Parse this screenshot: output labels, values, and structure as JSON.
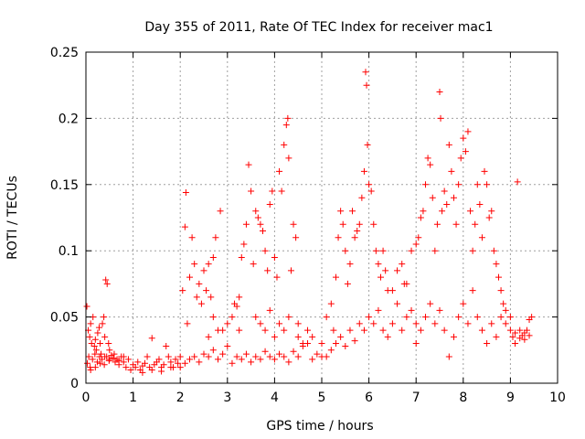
{
  "chart_data": {
    "type": "scatter",
    "title": "Day 355 of 2011, Rate Of TEC Index for receiver mac1",
    "xlabel": "GPS time / hours",
    "ylabel": "ROTI / TECUs",
    "xlim": [
      0,
      10
    ],
    "ylim": [
      0,
      0.25
    ],
    "x_ticks": [
      0,
      1,
      2,
      3,
      4,
      5,
      6,
      7,
      8,
      9,
      10
    ],
    "x_tick_labels": [
      "0",
      "1",
      "2",
      "3",
      "4",
      "5",
      "6",
      "7",
      "8",
      "9",
      "10"
    ],
    "y_ticks": [
      0,
      0.05,
      0.1,
      0.15,
      0.2,
      0.25
    ],
    "y_tick_labels": [
      "0",
      "0.05",
      "0.1",
      "0.15",
      "0.2",
      "0.25"
    ],
    "grid": true,
    "marker": "+",
    "color": "#ff0000",
    "series": [
      {
        "name": "ROTI",
        "points": [
          [
            0.02,
            0.058
          ],
          [
            0.05,
            0.04
          ],
          [
            0.08,
            0.035
          ],
          [
            0.1,
            0.045
          ],
          [
            0.12,
            0.03
          ],
          [
            0.15,
            0.05
          ],
          [
            0.18,
            0.028
          ],
          [
            0.2,
            0.033
          ],
          [
            0.22,
            0.025
          ],
          [
            0.25,
            0.038
          ],
          [
            0.28,
            0.042
          ],
          [
            0.3,
            0.03
          ],
          [
            0.32,
            0.022
          ],
          [
            0.35,
            0.045
          ],
          [
            0.38,
            0.05
          ],
          [
            0.4,
            0.035
          ],
          [
            0.42,
            0.078
          ],
          [
            0.45,
            0.075
          ],
          [
            0.48,
            0.03
          ],
          [
            0.5,
            0.025
          ],
          [
            0.03,
            0.015
          ],
          [
            0.06,
            0.02
          ],
          [
            0.09,
            0.012
          ],
          [
            0.14,
            0.018
          ],
          [
            0.19,
            0.022
          ],
          [
            0.24,
            0.016
          ],
          [
            0.29,
            0.02
          ],
          [
            0.34,
            0.018
          ],
          [
            0.39,
            0.014
          ],
          [
            0.44,
            0.02
          ],
          [
            0.49,
            0.017
          ],
          [
            0.54,
            0.021
          ],
          [
            0.58,
            0.019
          ],
          [
            0.62,
            0.016
          ],
          [
            0.66,
            0.018
          ],
          [
            0.7,
            0.014
          ],
          [
            0.75,
            0.02
          ],
          [
            0.8,
            0.016
          ],
          [
            0.85,
            0.012
          ],
          [
            0.9,
            0.018
          ],
          [
            0.95,
            0.01
          ],
          [
            1.0,
            0.014
          ],
          [
            1.05,
            0.012
          ],
          [
            1.1,
            0.016
          ],
          [
            1.15,
            0.01
          ],
          [
            1.2,
            0.013
          ],
          [
            1.25,
            0.015
          ],
          [
            1.3,
            0.02
          ],
          [
            1.35,
            0.012
          ],
          [
            1.4,
            0.034
          ],
          [
            1.45,
            0.014
          ],
          [
            1.5,
            0.016
          ],
          [
            1.55,
            0.018
          ],
          [
            1.6,
            0.012
          ],
          [
            1.65,
            0.014
          ],
          [
            1.7,
            0.028
          ],
          [
            1.75,
            0.02
          ],
          [
            1.8,
            0.016
          ],
          [
            1.85,
            0.012
          ],
          [
            1.9,
            0.018
          ],
          [
            1.95,
            0.015
          ],
          [
            2.0,
            0.02
          ],
          [
            2.05,
            0.07
          ],
          [
            2.1,
            0.118
          ],
          [
            2.12,
            0.144
          ],
          [
            2.15,
            0.045
          ],
          [
            2.2,
            0.08
          ],
          [
            2.25,
            0.11
          ],
          [
            2.3,
            0.09
          ],
          [
            2.35,
            0.065
          ],
          [
            2.4,
            0.075
          ],
          [
            2.45,
            0.06
          ],
          [
            2.5,
            0.085
          ],
          [
            2.55,
            0.07
          ],
          [
            2.6,
            0.09
          ],
          [
            2.65,
            0.065
          ],
          [
            2.7,
            0.095
          ],
          [
            2.75,
            0.11
          ],
          [
            2.8,
            0.04
          ],
          [
            2.85,
            0.13
          ],
          [
            2.0,
            0.012
          ],
          [
            2.1,
            0.015
          ],
          [
            2.2,
            0.018
          ],
          [
            2.3,
            0.02
          ],
          [
            2.4,
            0.016
          ],
          [
            2.5,
            0.022
          ],
          [
            2.6,
            0.02
          ],
          [
            2.7,
            0.025
          ],
          [
            2.8,
            0.018
          ],
          [
            2.9,
            0.022
          ],
          [
            3.0,
            0.028
          ],
          [
            3.1,
            0.05
          ],
          [
            3.15,
            0.06
          ],
          [
            3.2,
            0.058
          ],
          [
            3.25,
            0.04
          ],
          [
            3.3,
            0.095
          ],
          [
            3.35,
            0.105
          ],
          [
            3.4,
            0.12
          ],
          [
            3.45,
            0.165
          ],
          [
            3.5,
            0.145
          ],
          [
            3.55,
            0.09
          ],
          [
            3.6,
            0.13
          ],
          [
            3.65,
            0.125
          ],
          [
            3.7,
            0.12
          ],
          [
            3.75,
            0.115
          ],
          [
            3.8,
            0.1
          ],
          [
            3.85,
            0.085
          ],
          [
            3.9,
            0.135
          ],
          [
            3.95,
            0.145
          ],
          [
            4.0,
            0.095
          ],
          [
            4.05,
            0.08
          ],
          [
            4.1,
            0.16
          ],
          [
            4.15,
            0.145
          ],
          [
            4.2,
            0.18
          ],
          [
            4.25,
            0.195
          ],
          [
            4.28,
            0.2
          ],
          [
            4.3,
            0.17
          ],
          [
            4.35,
            0.085
          ],
          [
            4.4,
            0.12
          ],
          [
            4.45,
            0.11
          ],
          [
            3.1,
            0.015
          ],
          [
            3.2,
            0.02
          ],
          [
            3.3,
            0.018
          ],
          [
            3.4,
            0.022
          ],
          [
            3.5,
            0.016
          ],
          [
            3.6,
            0.02
          ],
          [
            3.7,
            0.018
          ],
          [
            3.8,
            0.024
          ],
          [
            3.9,
            0.02
          ],
          [
            4.0,
            0.018
          ],
          [
            4.1,
            0.022
          ],
          [
            4.2,
            0.02
          ],
          [
            4.3,
            0.016
          ],
          [
            4.4,
            0.024
          ],
          [
            4.5,
            0.02
          ],
          [
            4.6,
            0.028
          ],
          [
            4.7,
            0.03
          ],
          [
            4.8,
            0.018
          ],
          [
            4.9,
            0.022
          ],
          [
            5.0,
            0.02
          ],
          [
            3.6,
            0.05
          ],
          [
            3.7,
            0.045
          ],
          [
            3.8,
            0.04
          ],
          [
            3.9,
            0.055
          ],
          [
            4.0,
            0.035
          ],
          [
            4.1,
            0.045
          ],
          [
            4.2,
            0.04
          ],
          [
            4.3,
            0.05
          ],
          [
            4.5,
            0.035
          ],
          [
            4.6,
            0.03
          ],
          [
            4.8,
            0.035
          ],
          [
            5.0,
            0.03
          ],
          [
            5.1,
            0.05
          ],
          [
            5.2,
            0.06
          ],
          [
            5.25,
            0.04
          ],
          [
            5.3,
            0.08
          ],
          [
            5.35,
            0.11
          ],
          [
            5.4,
            0.13
          ],
          [
            5.45,
            0.12
          ],
          [
            5.5,
            0.1
          ],
          [
            5.55,
            0.075
          ],
          [
            5.6,
            0.09
          ],
          [
            5.65,
            0.13
          ],
          [
            5.7,
            0.11
          ],
          [
            5.75,
            0.115
          ],
          [
            5.8,
            0.12
          ],
          [
            5.85,
            0.14
          ],
          [
            5.9,
            0.16
          ],
          [
            5.93,
            0.235
          ],
          [
            5.95,
            0.225
          ],
          [
            5.97,
            0.18
          ],
          [
            6.0,
            0.15
          ],
          [
            6.05,
            0.145
          ],
          [
            6.1,
            0.12
          ],
          [
            6.15,
            0.1
          ],
          [
            6.2,
            0.09
          ],
          [
            6.25,
            0.08
          ],
          [
            6.3,
            0.1
          ],
          [
            6.35,
            0.085
          ],
          [
            6.4,
            0.07
          ],
          [
            5.1,
            0.02
          ],
          [
            5.2,
            0.025
          ],
          [
            5.3,
            0.03
          ],
          [
            5.4,
            0.035
          ],
          [
            5.5,
            0.028
          ],
          [
            5.6,
            0.04
          ],
          [
            5.7,
            0.032
          ],
          [
            5.8,
            0.045
          ],
          [
            5.9,
            0.04
          ],
          [
            6.0,
            0.05
          ],
          [
            6.1,
            0.045
          ],
          [
            6.2,
            0.055
          ],
          [
            6.3,
            0.04
          ],
          [
            6.4,
            0.035
          ],
          [
            6.5,
            0.045
          ],
          [
            6.6,
            0.06
          ],
          [
            6.7,
            0.04
          ],
          [
            6.8,
            0.05
          ],
          [
            6.9,
            0.055
          ],
          [
            7.0,
            0.045
          ],
          [
            6.5,
            0.07
          ],
          [
            6.6,
            0.085
          ],
          [
            6.7,
            0.09
          ],
          [
            6.8,
            0.075
          ],
          [
            6.9,
            0.1
          ],
          [
            7.0,
            0.105
          ],
          [
            7.05,
            0.11
          ],
          [
            7.1,
            0.125
          ],
          [
            7.15,
            0.13
          ],
          [
            7.2,
            0.15
          ],
          [
            7.25,
            0.17
          ],
          [
            7.3,
            0.165
          ],
          [
            7.35,
            0.14
          ],
          [
            7.4,
            0.1
          ],
          [
            7.45,
            0.12
          ],
          [
            7.5,
            0.22
          ],
          [
            7.52,
            0.2
          ],
          [
            7.55,
            0.13
          ],
          [
            7.6,
            0.145
          ],
          [
            7.65,
            0.135
          ],
          [
            7.7,
            0.18
          ],
          [
            7.75,
            0.16
          ],
          [
            7.8,
            0.14
          ],
          [
            7.85,
            0.12
          ],
          [
            7.9,
            0.15
          ],
          [
            7.95,
            0.17
          ],
          [
            8.0,
            0.185
          ],
          [
            8.05,
            0.175
          ],
          [
            8.1,
            0.19
          ],
          [
            8.15,
            0.13
          ],
          [
            8.2,
            0.1
          ],
          [
            8.25,
            0.12
          ],
          [
            8.3,
            0.15
          ],
          [
            8.35,
            0.135
          ],
          [
            8.4,
            0.11
          ],
          [
            8.45,
            0.16
          ],
          [
            8.5,
            0.15
          ],
          [
            8.55,
            0.125
          ],
          [
            8.6,
            0.13
          ],
          [
            8.65,
            0.1
          ],
          [
            7.0,
            0.03
          ],
          [
            7.1,
            0.04
          ],
          [
            7.2,
            0.05
          ],
          [
            7.3,
            0.06
          ],
          [
            7.4,
            0.045
          ],
          [
            7.5,
            0.055
          ],
          [
            7.6,
            0.04
          ],
          [
            7.7,
            0.02
          ],
          [
            7.8,
            0.035
          ],
          [
            7.9,
            0.05
          ],
          [
            8.0,
            0.06
          ],
          [
            8.1,
            0.045
          ],
          [
            8.2,
            0.07
          ],
          [
            8.3,
            0.05
          ],
          [
            8.4,
            0.04
          ],
          [
            8.5,
            0.03
          ],
          [
            8.6,
            0.045
          ],
          [
            8.7,
            0.035
          ],
          [
            8.8,
            0.05
          ],
          [
            8.9,
            0.055
          ],
          [
            8.7,
            0.09
          ],
          [
            8.75,
            0.08
          ],
          [
            8.8,
            0.07
          ],
          [
            8.85,
            0.06
          ],
          [
            8.9,
            0.045
          ],
          [
            9.0,
            0.04
          ],
          [
            9.05,
            0.035
          ],
          [
            9.1,
            0.038
          ],
          [
            9.15,
            0.152
          ],
          [
            9.2,
            0.04
          ],
          [
            9.25,
            0.036
          ],
          [
            9.3,
            0.033
          ],
          [
            9.35,
            0.04
          ],
          [
            9.4,
            0.048
          ],
          [
            9.45,
            0.05
          ],
          [
            9.0,
            0.05
          ],
          [
            9.1,
            0.03
          ],
          [
            9.2,
            0.034
          ],
          [
            9.3,
            0.038
          ],
          [
            9.4,
            0.036
          ],
          [
            0.1,
            0.01
          ],
          [
            0.2,
            0.012
          ],
          [
            0.3,
            0.015
          ],
          [
            0.4,
            0.02
          ],
          [
            0.5,
            0.018
          ],
          [
            0.6,
            0.022
          ],
          [
            0.7,
            0.017
          ],
          [
            0.8,
            0.02
          ],
          [
            1.2,
            0.008
          ],
          [
            1.4,
            0.01
          ],
          [
            1.6,
            0.009
          ],
          [
            1.8,
            0.012
          ],
          [
            2.6,
            0.035
          ],
          [
            2.7,
            0.05
          ],
          [
            2.9,
            0.04
          ],
          [
            3.0,
            0.045
          ],
          [
            3.25,
            0.065
          ],
          [
            4.5,
            0.045
          ],
          [
            4.7,
            0.04
          ],
          [
            6.75,
            0.075
          ]
        ]
      }
    ]
  }
}
